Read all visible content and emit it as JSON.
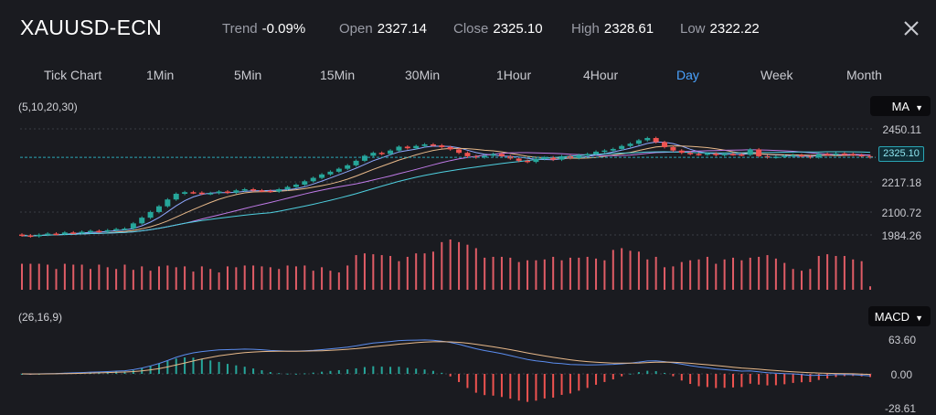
{
  "header": {
    "symbol": "XAUUSD-ECN",
    "trend_label": "Trend",
    "trend_value": "-0.09%",
    "open_label": "Open",
    "open_value": "2327.14",
    "close_label": "Close",
    "close_value": "2325.10",
    "high_label": "High",
    "high_value": "2328.61",
    "low_label": "Low",
    "low_value": "2322.22"
  },
  "tabs": [
    {
      "label": "Tick Chart"
    },
    {
      "label": "1Min"
    },
    {
      "label": "5Min"
    },
    {
      "label": "15Min"
    },
    {
      "label": "30Min"
    },
    {
      "label": "1Hour"
    },
    {
      "label": "4Hour"
    },
    {
      "label": "Day"
    },
    {
      "label": "Week"
    },
    {
      "label": "Month"
    }
  ],
  "active_tab": "Day",
  "main_indicator": {
    "params": "(5,10,20,30)",
    "selected": "MA"
  },
  "macd_indicator": {
    "params": "(26,16,9)",
    "selected": "MACD"
  },
  "price_axis": [
    "2450.11",
    "2217.18",
    "2100.72",
    "1984.26"
  ],
  "current_price": "2325.10",
  "macd_axis": [
    "63.60",
    "0.00",
    "-28.61"
  ],
  "colors": {
    "up": "#26a69a",
    "down": "#ef5350",
    "volume": "#e05c66",
    "macd_line": "#5b8def",
    "signal_line": "#e8b98a",
    "price_line": "#2aa6b6",
    "accent": "#4aa3ff",
    "background": "#1a1b20"
  },
  "icons": {
    "close": "close-icon",
    "dropdown": "caret-down-icon"
  },
  "chart_data": {
    "type": "candlestick",
    "price_closes": [
      1982,
      1978,
      1985,
      1990,
      1988,
      1995,
      1993,
      1998,
      2002,
      2000,
      2005,
      2010,
      2012,
      2035,
      2060,
      2085,
      2110,
      2140,
      2165,
      2172,
      2170,
      2165,
      2168,
      2175,
      2170,
      2180,
      2185,
      2180,
      2178,
      2175,
      2185,
      2195,
      2205,
      2220,
      2235,
      2250,
      2262,
      2275,
      2290,
      2310,
      2332,
      2345,
      2340,
      2355,
      2372,
      2365,
      2375,
      2382,
      2378,
      2370,
      2360,
      2345,
      2330,
      2325,
      2332,
      2340,
      2330,
      2320,
      2310,
      2305,
      2318,
      2325,
      2315,
      2330,
      2322,
      2335,
      2340,
      2350,
      2355,
      2362,
      2375,
      2385,
      2400,
      2410,
      2392,
      2370,
      2355,
      2345,
      2340,
      2338,
      2342,
      2335,
      2340,
      2338,
      2336,
      2360,
      2330,
      2325,
      2328,
      2332,
      2335,
      2330,
      2325,
      2340,
      2338,
      2342,
      2340,
      2335,
      2330,
      2325
    ],
    "price_ylim": [
      1984.26,
      2450.11
    ],
    "volume": [
      30,
      30,
      30,
      29,
      24,
      30,
      29,
      29,
      24,
      29,
      26,
      24,
      29,
      23,
      27,
      22,
      27,
      28,
      26,
      27,
      21,
      27,
      24,
      20,
      27,
      26,
      28,
      28,
      27,
      26,
      24,
      28,
      27,
      28,
      22,
      26,
      22,
      20,
      28,
      40,
      42,
      41,
      40,
      39,
      33,
      38,
      42,
      42,
      44,
      55,
      58,
      55,
      52,
      48,
      37,
      38,
      38,
      37,
      32,
      34,
      34,
      35,
      38,
      34,
      37,
      37,
      38,
      36,
      34,
      46,
      48,
      45,
      44,
      35,
      38,
      26,
      27,
      32,
      34,
      35,
      38,
      30,
      35,
      37,
      34,
      37,
      38,
      40,
      36,
      31,
      24,
      22,
      24,
      39,
      41,
      39,
      39,
      35,
      33,
      4
    ],
    "macd_ylim": [
      -28.61,
      63.6
    ]
  }
}
